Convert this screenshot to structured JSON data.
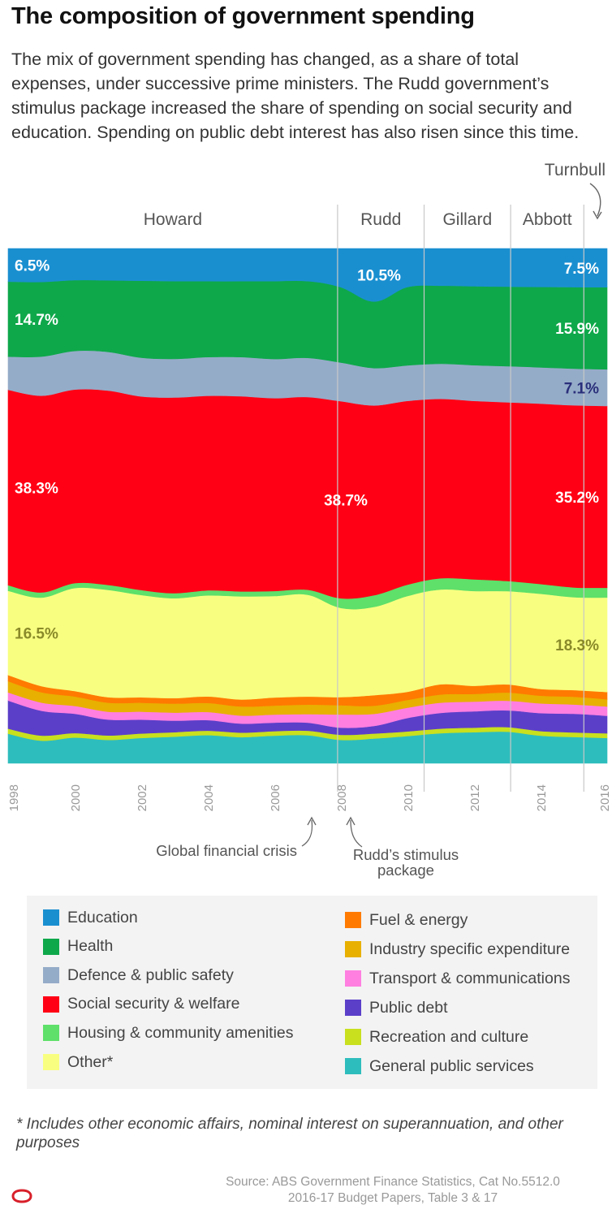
{
  "title": "The composition of government spending",
  "subtitle": "The mix of government spending has changed, as a share of total expenses, under successive prime ministers. The Rudd government’s stimulus package increased the share of spending on social security and education. Spending on public debt interest has also risen since this time.",
  "footnote": "* Includes other economic affairs, nominal interest on superannuation, and other purposes",
  "source_line1": "Source: ABS Government Finance Statistics, Cat No.5512.0",
  "source_line2": "2016-17 Budget Papers, Table 3 & 17",
  "logo_icon": "conversation-logo-icon",
  "chart_data": {
    "type": "area",
    "stacked": true,
    "normalized_percent": true,
    "x": [
      1998,
      1999,
      2000,
      2001,
      2002,
      2003,
      2004,
      2005,
      2006,
      2007,
      2008,
      2009,
      2010,
      2011,
      2012,
      2013,
      2014,
      2015,
      2016
    ],
    "xlim": [
      1998,
      2016
    ],
    "ylim": [
      0,
      100
    ],
    "x_tick_labels": [
      "1998",
      "2000",
      "2002",
      "2004",
      "2006",
      "2008",
      "2010",
      "2012",
      "2014",
      "2016"
    ],
    "grid": false,
    "legend_position": "bottom",
    "series": [
      {
        "name": "General public services",
        "color": "#2ebdbd",
        "values": [
          5.8,
          4.4,
          5.2,
          4.7,
          5.1,
          5.3,
          5.6,
          5.2,
          5.5,
          5.6,
          4.6,
          4.9,
          5.3,
          5.9,
          6.1,
          6.2,
          5.4,
          5.1,
          4.9
        ]
      },
      {
        "name": "Recreation and culture",
        "color": "#c8e01e",
        "values": [
          1.0,
          1.0,
          0.9,
          0.9,
          0.9,
          0.9,
          0.9,
          0.9,
          0.9,
          0.9,
          1.0,
          1.0,
          0.9,
          0.9,
          0.9,
          0.9,
          0.9,
          0.9,
          0.9
        ]
      },
      {
        "name": "Public debt",
        "color": "#5b3fc9",
        "values": [
          5.5,
          4.8,
          3.9,
          3.2,
          2.8,
          2.3,
          2.1,
          1.8,
          1.7,
          1.6,
          1.4,
          1.5,
          2.6,
          3.1,
          3.2,
          3.3,
          3.5,
          3.6,
          3.4
        ]
      },
      {
        "name": "Transport & communications",
        "color": "#ff7fe0",
        "values": [
          1.6,
          1.6,
          1.6,
          1.6,
          1.6,
          1.6,
          1.6,
          1.6,
          1.6,
          1.7,
          2.6,
          2.4,
          2.0,
          2.0,
          1.9,
          1.9,
          1.9,
          1.8,
          1.8
        ]
      },
      {
        "name": "Industry specific expenditure",
        "color": "#e8b000",
        "values": [
          2.2,
          2.0,
          1.9,
          1.8,
          1.8,
          1.8,
          1.8,
          1.8,
          1.8,
          1.9,
          1.8,
          1.6,
          1.5,
          1.6,
          1.5,
          1.6,
          1.5,
          1.5,
          1.4
        ]
      },
      {
        "name": "Fuel & energy",
        "color": "#ff7a00",
        "values": [
          1.2,
          1.2,
          1.1,
          1.1,
          1.1,
          1.1,
          1.3,
          1.4,
          1.6,
          1.6,
          1.6,
          2.1,
          1.6,
          2.0,
          1.6,
          1.6,
          1.3,
          1.3,
          1.4
        ]
      },
      {
        "name": "Other*",
        "color": "#f8ff80",
        "values": [
          16.5,
          17.2,
          20.8,
          21.6,
          20.6,
          19.9,
          20.1,
          20.5,
          20.2,
          20.3,
          17.5,
          17.5,
          18.6,
          18.6,
          18.6,
          18.3,
          18.6,
          18.0,
          18.3
        ]
      },
      {
        "name": "Housing & community amenities",
        "color": "#5ee06a",
        "values": [
          1.1,
          1.0,
          1.0,
          1.0,
          1.0,
          1.0,
          1.0,
          1.0,
          1.0,
          1.0,
          1.9,
          2.3,
          2.2,
          2.2,
          2.3,
          2.0,
          1.9,
          1.9,
          1.9
        ]
      },
      {
        "name": "Social security & welfare",
        "color": "#ff0015",
        "values": [
          38.3,
          38.2,
          39.1,
          39.1,
          39.0,
          39.0,
          38.7,
          38.8,
          38.4,
          38.4,
          38.7,
          37.6,
          35.7,
          35.2,
          35.0,
          35.1,
          35.2,
          35.3,
          35.2
        ]
      },
      {
        "name": "Defence & public safety",
        "color": "#95acc8",
        "values": [
          6.5,
          7.6,
          7.8,
          7.8,
          7.8,
          7.7,
          7.7,
          7.8,
          7.8,
          7.8,
          7.6,
          7.4,
          6.9,
          6.9,
          7.0,
          7.1,
          7.1,
          7.1,
          7.1
        ]
      },
      {
        "name": "Health",
        "color": "#0ea84a",
        "values": [
          14.7,
          14.5,
          14.3,
          14.4,
          15.5,
          15.5,
          15.1,
          15.1,
          15.5,
          15.3,
          14.8,
          13.2,
          15.2,
          15.3,
          15.5,
          15.6,
          15.7,
          15.8,
          15.9
        ]
      },
      {
        "name": "Education",
        "color": "#1a8fd0",
        "values": [
          6.5,
          6.5,
          6.4,
          6.4,
          6.5,
          6.5,
          6.5,
          6.5,
          6.5,
          6.5,
          7.6,
          10.5,
          7.5,
          7.3,
          7.4,
          7.5,
          7.5,
          7.5,
          7.5
        ]
      }
    ],
    "eras": [
      {
        "label": "Howard"
      },
      {
        "label": "Rudd"
      },
      {
        "label": "Gillard"
      },
      {
        "label": "Abbott"
      },
      {
        "label": "Turnbull"
      }
    ],
    "era_boundaries": [
      2007.9,
      2010.5,
      2013.1,
      2015.3
    ],
    "value_labels": [
      {
        "text": "6.5%",
        "x": 1998,
        "series": "Education",
        "color": "#ffffff"
      },
      {
        "text": "10.5%",
        "x": 2009,
        "series": "Education",
        "color": "#ffffff"
      },
      {
        "text": "7.5%",
        "x": 2016,
        "series": "Education",
        "color": "#ffffff"
      },
      {
        "text": "14.7%",
        "x": 1998,
        "series": "Health",
        "color": "#ffffff"
      },
      {
        "text": "15.9%",
        "x": 2016,
        "series": "Health",
        "color": "#ffffff"
      },
      {
        "text": "7.1%",
        "x": 2016,
        "series": "Defence & public safety",
        "color": "#2a2f7a"
      },
      {
        "text": "38.3%",
        "x": 1998,
        "series": "Social security & welfare",
        "color": "#ffffff"
      },
      {
        "text": "38.7%",
        "x": 2008,
        "series": "Social security & welfare",
        "color": "#ffffff"
      },
      {
        "text": "35.2%",
        "x": 2016,
        "series": "Social security & welfare",
        "color": "#ffffff"
      },
      {
        "text": "16.5%",
        "x": 1998,
        "series": "Other*",
        "color": "#8a8a2a"
      },
      {
        "text": "18.3%",
        "x": 2016,
        "series": "Other*",
        "color": "#8a8a2a"
      }
    ],
    "annotations": [
      {
        "text": "Global financial crisis",
        "x": 2007.4
      },
      {
        "text": "Rudd’s stimulus package",
        "x": 2008.4
      }
    ]
  },
  "legend": [
    {
      "label": "Education",
      "color": "#1a8fd0"
    },
    {
      "label": "Health",
      "color": "#0ea84a"
    },
    {
      "label": "Defence & public safety",
      "color": "#95acc8"
    },
    {
      "label": "Social security & welfare",
      "color": "#ff0015"
    },
    {
      "label": "Housing & community amenities",
      "color": "#5ee06a"
    },
    {
      "label": "Other*",
      "color": "#f8ff80"
    },
    {
      "label": "Fuel & energy",
      "color": "#ff7a00"
    },
    {
      "label": "Industry specific expenditure",
      "color": "#e8b000"
    },
    {
      "label": "Transport & communications",
      "color": "#ff7fe0"
    },
    {
      "label": "Public debt",
      "color": "#5b3fc9"
    },
    {
      "label": "Recreation and culture",
      "color": "#c8e01e"
    },
    {
      "label": "General public services",
      "color": "#2ebdbd"
    }
  ]
}
